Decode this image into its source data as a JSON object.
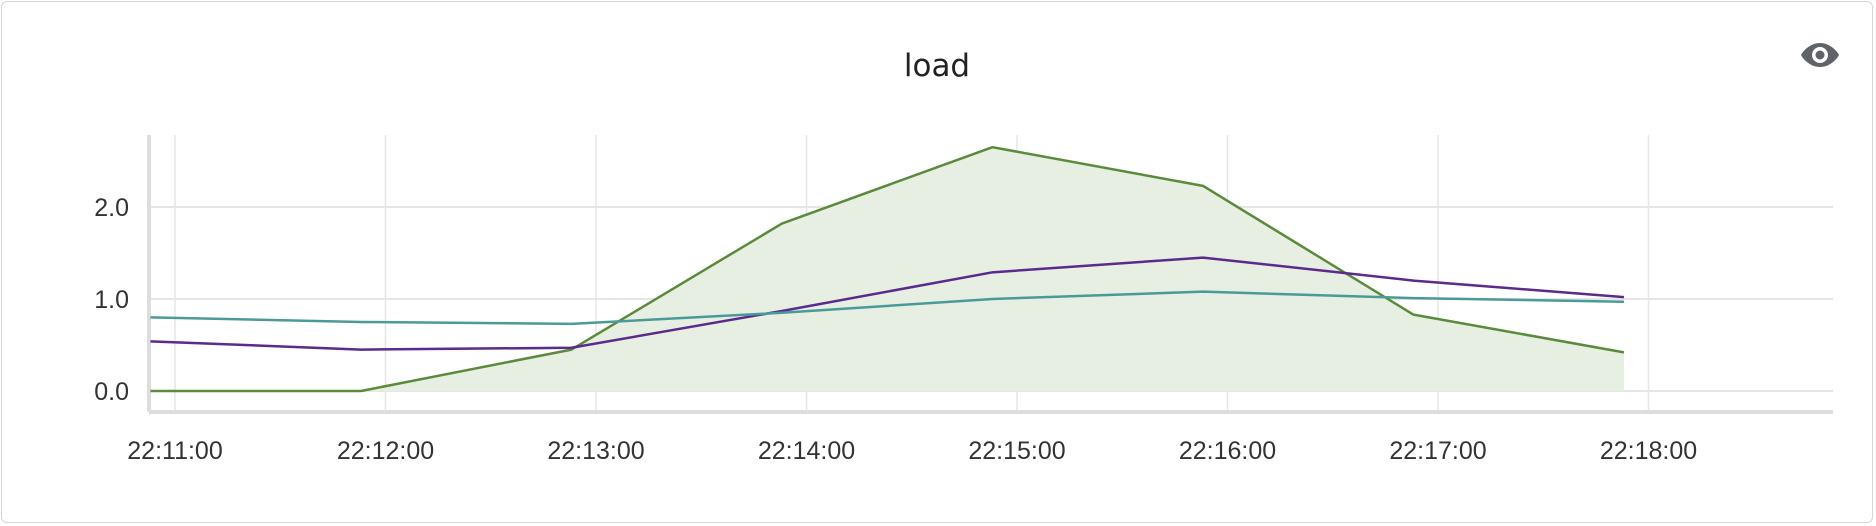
{
  "widget": {
    "title": "load",
    "visibility_icon": "eye-icon"
  },
  "colors": {
    "grid": "#e6e6e6",
    "axis": "#dddddd",
    "series_green": "#5a8a3a",
    "series_green_fill": "#e6efe1",
    "series_purple": "#5b2a8c",
    "series_teal": "#4b9a9a"
  },
  "chart_data": {
    "type": "line",
    "title": "load",
    "xlabel": "",
    "ylabel": "",
    "x_ticks": [
      "22:11:00",
      "22:12:00",
      "22:13:00",
      "22:14:00",
      "22:15:00",
      "22:16:00",
      "22:17:00",
      "22:18:00"
    ],
    "y_ticks": [
      "0.0",
      "1.0",
      "2.0"
    ],
    "ylim": [
      0,
      2.8
    ],
    "grid": true,
    "x": [
      "22:10:53",
      "22:11:53",
      "22:12:53",
      "22:13:53",
      "22:14:53",
      "22:15:53",
      "22:16:53",
      "22:17:53"
    ],
    "series": [
      {
        "key": "green",
        "area": true,
        "values": [
          0.0,
          0.0,
          0.45,
          1.82,
          2.65,
          2.23,
          0.83,
          0.42
        ]
      },
      {
        "key": "purple",
        "area": false,
        "values": [
          0.54,
          0.45,
          0.47,
          0.87,
          1.29,
          1.45,
          1.2,
          1.02
        ]
      },
      {
        "key": "teal",
        "area": false,
        "values": [
          0.8,
          0.75,
          0.73,
          0.85,
          1.0,
          1.08,
          1.01,
          0.97
        ]
      }
    ]
  }
}
